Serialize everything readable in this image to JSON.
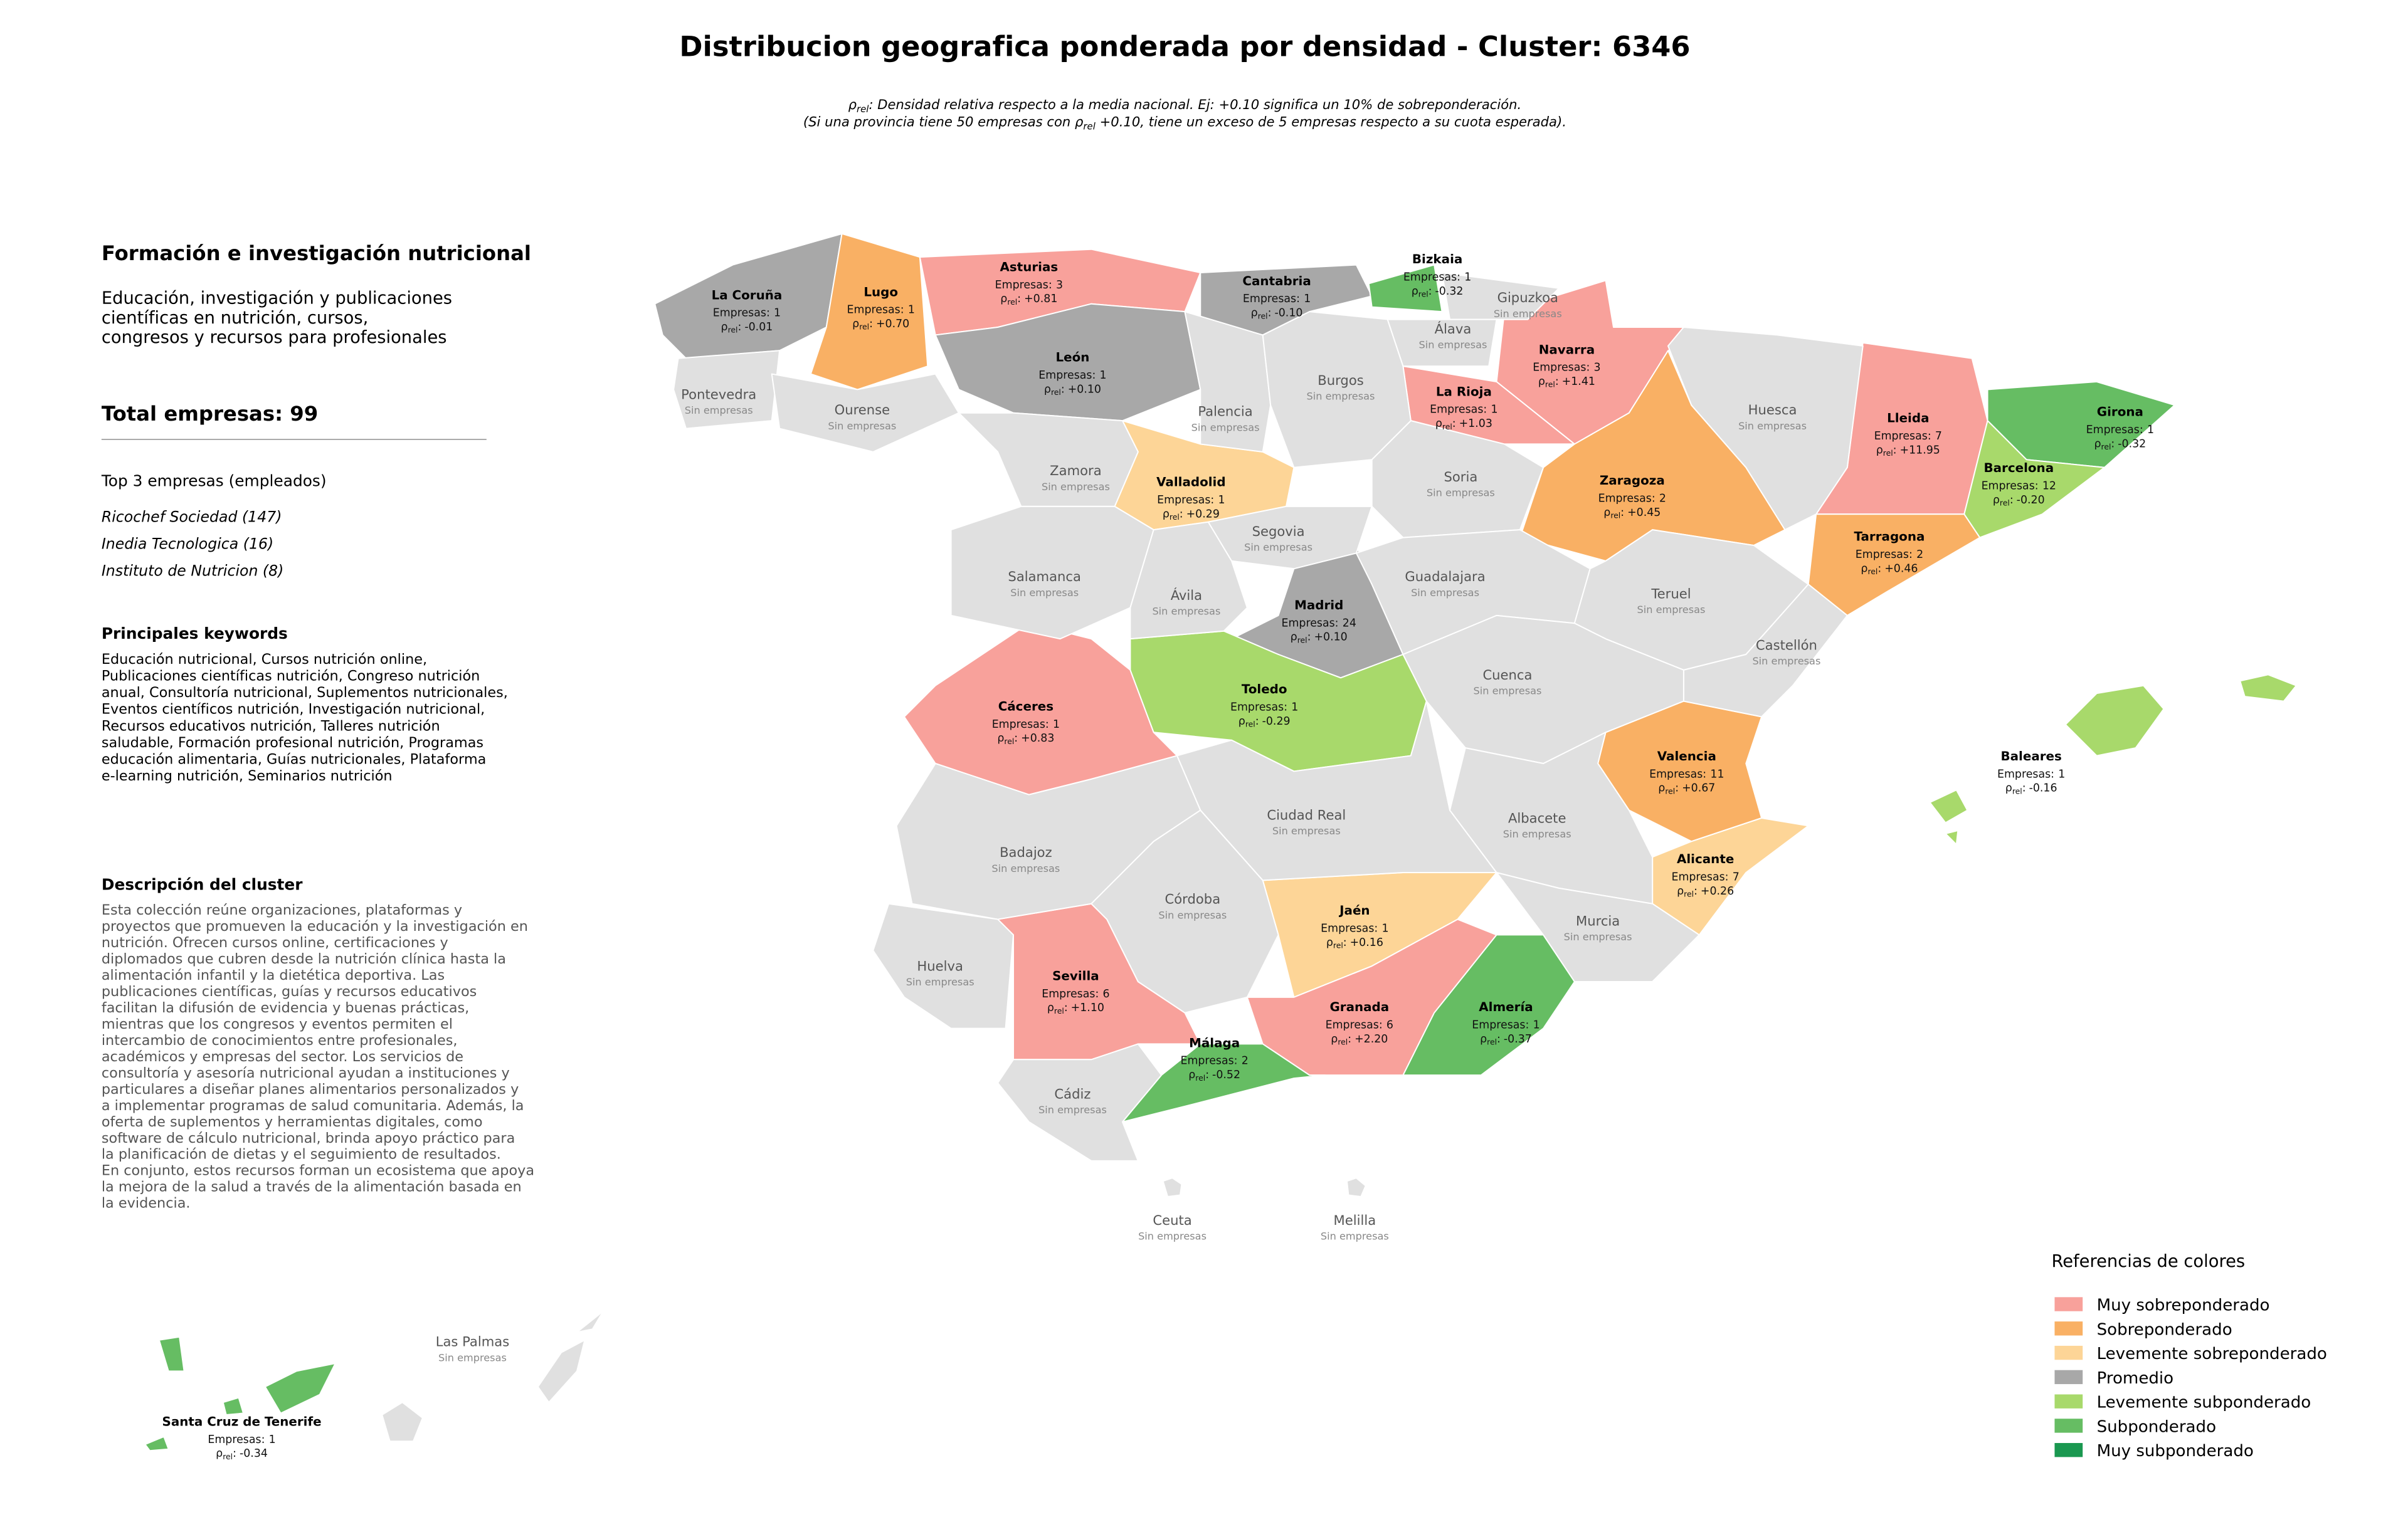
{
  "header": {
    "title": "Distribucion geografica ponderada por densidad - Cluster: 6346",
    "subtitle": [
      {
        "pre": "ρ",
        "sub": "rel",
        "post": ": Densidad relativa respecto a la media nacional. Ej: +0.10 significa un 10% de sobreponderación."
      },
      {
        "pre": "(Si una provincia tiene 50 empresas con ρ",
        "sub": "rel",
        "post": " +0.10, tiene un exceso de 5 empresas respecto a su cuota esperada)."
      }
    ]
  },
  "panel": {
    "sector_title": "Formación e investigación nutricional",
    "sector_description": [
      "Educación, investigación y publicaciones",
      "científicas en nutrición, cursos,",
      "congresos y recursos para profesionales"
    ],
    "total": "Total empresas: 99",
    "top_heading": "Top 3 empresas (empleados)",
    "top_companies": [
      "Ricochef Sociedad (147)",
      "Inedia Tecnologica (16)",
      "Instituto de Nutricion (8)"
    ],
    "keywords_heading": "Principales keywords",
    "keywords": [
      "Educación nutricional, Cursos nutrición online,",
      "Publicaciones científicas nutrición, Congreso nutrición",
      "anual, Consultoría nutricional, Suplementos nutricionales,",
      "Eventos científicos nutrición, Investigación nutricional,",
      "Recursos educativos nutrición, Talleres nutrición",
      "saludable, Formación profesional nutrición, Programas",
      "educación alimentaria, Guías nutricionales, Plataforma",
      "e-learning nutrición, Seminarios nutrición"
    ],
    "description_heading": "Descripción del cluster",
    "description": [
      "Esta colección reúne organizaciones, plataformas y",
      "proyectos que promueven la educación y la investigación en",
      "nutrición. Ofrecen cursos online, certificaciones y",
      "diplomados que cubren desde la nutrición clínica hasta la",
      "alimentación infantil y la dietética deportiva. Las",
      "publicaciones científicas, guías y recursos educativos",
      "facilitan la difusión de evidencia y buenas prácticas,",
      "mientras que los congresos y eventos permiten el",
      "intercambio de conocimientos entre profesionales,",
      "académicos y empresas del sector. Los servicios de",
      "consultoría y asesoría nutricional ayudan a instituciones y",
      "particulares a diseñar planes alimentarios personalizados y",
      "a implementar programas de salud comunitaria. Además, la",
      "oferta de suplementos y herramientas digitales, como",
      "software de cálculo nutricional, brinda apoyo práctico para",
      "la planificación de dietas y el seguimiento de resultados.",
      "En conjunto, estos recursos forman un ecosistema que apoya",
      "la mejora de la salud a través de la alimentación basada en",
      "la evidencia."
    ]
  },
  "map": {
    "rho_symbol": "ρ",
    "rho_sub": "rel",
    "empresas_label": "Empresas:",
    "no_data_label": "Sin empresas",
    "no_data_color": "#e0e0e0",
    "provinces": [
      {
        "name": "La Coruña",
        "empresas": 1,
        "rho": "-0.01",
        "level": 3
      },
      {
        "name": "Lugo",
        "empresas": 1,
        "rho": "+0.70",
        "level": 1
      },
      {
        "name": "Asturias",
        "empresas": 3,
        "rho": "+0.81",
        "level": 0
      },
      {
        "name": "Cantabria",
        "empresas": 1,
        "rho": "-0.10",
        "level": 3
      },
      {
        "name": "Bizkaia",
        "empresas": 1,
        "rho": "-0.32",
        "level": 5
      },
      {
        "name": "Navarra",
        "empresas": 3,
        "rho": "+1.41",
        "level": 0
      },
      {
        "name": "La Rioja",
        "empresas": 1,
        "rho": "+1.03",
        "level": 0
      },
      {
        "name": "León",
        "empresas": 1,
        "rho": "+0.10",
        "level": 3
      },
      {
        "name": "Lleida",
        "empresas": 7,
        "rho": "+11.95",
        "level": 0
      },
      {
        "name": "Girona",
        "empresas": 1,
        "rho": "-0.32",
        "level": 5
      },
      {
        "name": "Barcelona",
        "empresas": 12,
        "rho": "-0.20",
        "level": 4
      },
      {
        "name": "Zaragoza",
        "empresas": 2,
        "rho": "+0.45",
        "level": 1
      },
      {
        "name": "Tarragona",
        "empresas": 2,
        "rho": "+0.46",
        "level": 1
      },
      {
        "name": "Valladolid",
        "empresas": 1,
        "rho": "+0.29",
        "level": 2
      },
      {
        "name": "Madrid",
        "empresas": 24,
        "rho": "+0.10",
        "level": 3
      },
      {
        "name": "Cáceres",
        "empresas": 1,
        "rho": "+0.83",
        "level": 0
      },
      {
        "name": "Toledo",
        "empresas": 1,
        "rho": "-0.29",
        "level": 4
      },
      {
        "name": "Valencia",
        "empresas": 11,
        "rho": "+0.67",
        "level": 1
      },
      {
        "name": "Baleares",
        "empresas": 1,
        "rho": "-0.16",
        "level": 4
      },
      {
        "name": "Alicante",
        "empresas": 7,
        "rho": "+0.26",
        "level": 2
      },
      {
        "name": "Jaén",
        "empresas": 1,
        "rho": "+0.16",
        "level": 2
      },
      {
        "name": "Sevilla",
        "empresas": 6,
        "rho": "+1.10",
        "level": 0
      },
      {
        "name": "Granada",
        "empresas": 6,
        "rho": "+2.20",
        "level": 0
      },
      {
        "name": "Almería",
        "empresas": 1,
        "rho": "-0.37",
        "level": 5
      },
      {
        "name": "Málaga",
        "empresas": 2,
        "rho": "-0.52",
        "level": 5
      },
      {
        "name": "Santa Cruz de Tenerife",
        "empresas": 1,
        "rho": "-0.34",
        "level": 5
      },
      {
        "name": "Gipuzkoa"
      },
      {
        "name": "Álava"
      },
      {
        "name": "Pontevedra"
      },
      {
        "name": "Ourense"
      },
      {
        "name": "Palencia"
      },
      {
        "name": "Burgos"
      },
      {
        "name": "Huesca"
      },
      {
        "name": "Zamora"
      },
      {
        "name": "Soria"
      },
      {
        "name": "Segovia"
      },
      {
        "name": "Salamanca"
      },
      {
        "name": "Ávila"
      },
      {
        "name": "Guadalajara"
      },
      {
        "name": "Teruel"
      },
      {
        "name": "Castellón"
      },
      {
        "name": "Cuenca"
      },
      {
        "name": "Ciudad Real"
      },
      {
        "name": "Albacete"
      },
      {
        "name": "Badajoz"
      },
      {
        "name": "Córdoba"
      },
      {
        "name": "Murcia"
      },
      {
        "name": "Huelva"
      },
      {
        "name": "Cádiz"
      },
      {
        "name": "Ceuta"
      },
      {
        "name": "Melilla"
      },
      {
        "name": "Las Palmas"
      }
    ]
  },
  "legend": {
    "title": "Referencias de colores",
    "items": [
      {
        "label": "Muy sobreponderado",
        "color": "#f8a19b"
      },
      {
        "label": "Sobreponderado",
        "color": "#f9b064"
      },
      {
        "label": "Levemente sobreponderado",
        "color": "#fdd597"
      },
      {
        "label": "Promedio",
        "color": "#a8a8a8"
      },
      {
        "label": "Levemente subponderado",
        "color": "#a8d96b"
      },
      {
        "label": "Subponderado",
        "color": "#66bd63"
      },
      {
        "label": "Muy subponderado",
        "color": "#1a9850"
      }
    ]
  }
}
